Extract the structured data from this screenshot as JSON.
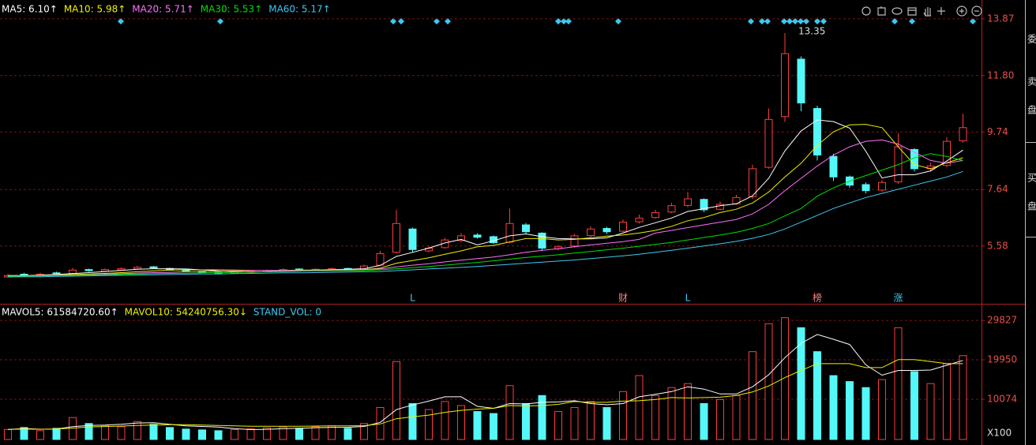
{
  "chart_data": [
    {
      "type": "candlestick",
      "series": [
        {
          "name": "MA5: 6.10↑",
          "color": "#ffffff",
          "values": [
            4.5,
            4.5,
            4.52,
            4.54,
            4.57,
            4.61,
            4.65,
            4.69,
            4.73,
            4.75,
            4.75,
            4.74,
            4.71,
            4.67,
            4.64,
            4.63,
            4.64,
            4.66,
            4.68,
            4.7,
            4.72,
            4.73,
            4.75,
            4.87,
            5.2,
            5.35,
            5.5,
            5.69,
            5.82,
            5.62,
            5.77,
            5.95,
            6.02,
            5.92,
            5.85,
            5.84,
            5.84,
            5.88,
            6.05,
            6.26,
            6.43,
            6.6,
            6.84,
            6.94,
            7.05,
            7.12,
            7.41,
            8.05,
            9.05,
            9.78,
            10.18,
            10.12,
            9.88,
            9.04,
            8.06,
            8.18,
            8.18,
            8.32,
            8.68,
            9.08
          ]
        },
        {
          "name": "MA10: 5.98↑",
          "color": "#f0f000",
          "values": [
            4.5,
            4.5,
            4.51,
            4.52,
            4.54,
            4.56,
            4.58,
            4.61,
            4.64,
            4.67,
            4.7,
            4.71,
            4.71,
            4.71,
            4.7,
            4.69,
            4.68,
            4.68,
            4.68,
            4.69,
            4.7,
            4.71,
            4.72,
            4.77,
            4.95,
            5.05,
            5.15,
            5.28,
            5.4,
            5.55,
            5.6,
            5.73,
            5.85,
            5.85,
            5.8,
            5.82,
            5.88,
            5.94,
            5.98,
            6.05,
            6.15,
            6.3,
            6.5,
            6.62,
            6.8,
            6.92,
            7.15,
            7.55,
            8.1,
            8.6,
            9.25,
            9.75,
            10.0,
            10.02,
            9.9,
            9.2,
            8.55,
            8.4,
            8.62,
            8.8
          ]
        },
        {
          "name": "MA20: 5.71↑",
          "color": "#ff70ff",
          "values": [
            4.48,
            4.49,
            4.5,
            4.51,
            4.52,
            4.53,
            4.55,
            4.57,
            4.59,
            4.61,
            4.62,
            4.64,
            4.65,
            4.66,
            4.67,
            4.68,
            4.69,
            4.69,
            4.7,
            4.7,
            4.71,
            4.71,
            4.72,
            4.74,
            4.82,
            4.88,
            4.93,
            5.0,
            5.06,
            5.12,
            5.18,
            5.26,
            5.35,
            5.42,
            5.48,
            5.55,
            5.62,
            5.68,
            5.74,
            5.82,
            6.05,
            6.15,
            6.25,
            6.35,
            6.45,
            6.55,
            6.75,
            7.1,
            7.6,
            8.05,
            8.5,
            8.9,
            9.2,
            9.4,
            9.45,
            9.3,
            9.0,
            8.7,
            8.6,
            8.7
          ]
        },
        {
          "name": "MA30: 5.53↑",
          "color": "#00e000",
          "values": [
            4.47,
            4.48,
            4.49,
            4.5,
            4.51,
            4.52,
            4.53,
            4.54,
            4.56,
            4.57,
            4.58,
            4.59,
            4.6,
            4.61,
            4.62,
            4.63,
            4.64,
            4.65,
            4.66,
            4.67,
            4.67,
            4.68,
            4.69,
            4.71,
            4.75,
            4.79,
            4.83,
            4.88,
            4.93,
            4.98,
            5.04,
            5.1,
            5.16,
            5.21,
            5.26,
            5.32,
            5.38,
            5.44,
            5.5,
            5.57,
            5.64,
            5.71,
            5.8,
            5.89,
            5.98,
            6.08,
            6.22,
            6.4,
            6.68,
            6.95,
            7.4,
            7.7,
            7.95,
            8.15,
            8.35,
            8.55,
            8.8,
            8.95,
            8.85,
            8.7
          ]
        },
        {
          "name": "MA60: 5.17↑",
          "color": "#40c8f0",
          "values": [
            4.45,
            4.46,
            4.46,
            4.47,
            4.48,
            4.49,
            4.5,
            4.51,
            4.52,
            4.53,
            4.54,
            4.55,
            4.56,
            4.56,
            4.57,
            4.58,
            4.59,
            4.6,
            4.6,
            4.61,
            4.62,
            4.63,
            4.64,
            4.65,
            4.68,
            4.71,
            4.74,
            4.77,
            4.8,
            4.83,
            4.87,
            4.91,
            4.95,
            4.99,
            5.03,
            5.07,
            5.12,
            5.17,
            5.22,
            5.28,
            5.35,
            5.42,
            5.5,
            5.58,
            5.66,
            5.75,
            5.86,
            6.0,
            6.2,
            6.45,
            6.7,
            6.95,
            7.15,
            7.35,
            7.5,
            7.65,
            7.8,
            7.95,
            8.1,
            8.3
          ]
        }
      ],
      "open": [
        4.45,
        4.55,
        4.5,
        4.6,
        4.58,
        4.72,
        4.66,
        4.7,
        4.74,
        4.82,
        4.76,
        4.7,
        4.66,
        4.62,
        4.58,
        4.62,
        4.64,
        4.67,
        4.74,
        4.69,
        4.71,
        4.76,
        4.72,
        4.88,
        5.35,
        6.2,
        5.4,
        5.52,
        5.78,
        5.98,
        5.92,
        5.72,
        6.35,
        6.05,
        5.48,
        5.58,
        5.96,
        6.22,
        6.12,
        6.46,
        6.62,
        6.82,
        7.06,
        7.28,
        6.92,
        7.12,
        7.38,
        8.45,
        10.3,
        12.4,
        10.6,
        8.85,
        8.1,
        7.82,
        7.62,
        7.92,
        9.1,
        8.4,
        8.52,
        9.42
      ],
      "high": [
        4.56,
        4.6,
        4.6,
        4.64,
        4.78,
        4.75,
        4.76,
        4.8,
        4.86,
        4.85,
        4.79,
        4.73,
        4.68,
        4.65,
        4.67,
        4.7,
        4.72,
        4.76,
        4.77,
        4.76,
        4.79,
        4.78,
        4.9,
        5.4,
        6.9,
        6.25,
        5.58,
        5.88,
        6.05,
        6.05,
        5.96,
        6.95,
        6.42,
        6.08,
        5.62,
        6.02,
        6.3,
        6.28,
        6.55,
        6.72,
        6.9,
        7.15,
        7.55,
        7.32,
        7.2,
        7.45,
        8.55,
        10.6,
        13.35,
        12.5,
        10.7,
        8.95,
        8.15,
        7.9,
        7.98,
        9.7,
        9.15,
        8.62,
        9.55,
        10.4
      ],
      "low": [
        4.42,
        4.48,
        4.47,
        4.55,
        4.55,
        4.64,
        4.63,
        4.68,
        4.72,
        4.74,
        4.68,
        4.62,
        4.6,
        4.57,
        4.56,
        4.6,
        4.62,
        4.65,
        4.68,
        4.66,
        4.69,
        4.67,
        4.7,
        4.85,
        5.3,
        5.35,
        5.35,
        5.48,
        5.72,
        5.85,
        5.65,
        5.68,
        6.02,
        5.4,
        5.42,
        5.52,
        5.9,
        6.02,
        6.08,
        6.4,
        6.58,
        6.78,
        7.0,
        6.82,
        6.88,
        7.08,
        7.3,
        8.4,
        10.1,
        10.5,
        8.7,
        7.95,
        7.7,
        7.5,
        7.55,
        7.85,
        8.3,
        8.3,
        8.45,
        9.35
      ],
      "close": [
        4.5,
        4.52,
        4.55,
        4.58,
        4.7,
        4.68,
        4.72,
        4.75,
        4.8,
        4.78,
        4.7,
        4.65,
        4.62,
        4.6,
        4.63,
        4.66,
        4.68,
        4.72,
        4.7,
        4.73,
        4.75,
        4.7,
        4.85,
        5.3,
        6.4,
        5.45,
        5.5,
        5.8,
        5.95,
        5.9,
        5.7,
        6.4,
        6.1,
        5.5,
        5.55,
        5.95,
        6.2,
        6.1,
        6.45,
        6.6,
        6.8,
        7.05,
        7.3,
        6.9,
        7.1,
        7.35,
        8.4,
        10.2,
        12.6,
        10.8,
        8.9,
        8.1,
        7.8,
        7.6,
        7.9,
        9.2,
        8.4,
        8.5,
        9.4,
        9.9
      ],
      "up_color": "#ff3c3c",
      "down_color": "#54f8f8",
      "ylim": [
        3.5,
        14.27
      ],
      "yticks": [
        5.58,
        7.64,
        9.74,
        {
          "value": 11.8,
          "label": "11.80"
        },
        13.87
      ],
      "grid": true,
      "events": [
        "L",
        "财",
        "L",
        "榜",
        "涨"
      ]
    },
    {
      "type": "bar",
      "series": [
        {
          "name": "MAVOL5: 61584720.60↑",
          "color": "#ffffff",
          "values": [
            2500,
            2750,
            2570,
            2625,
            3200,
            3500,
            3600,
            3800,
            4140,
            4200,
            3800,
            3420,
            3260,
            3100,
            2700,
            2480,
            2540,
            2680,
            2800,
            2940,
            3040,
            3060,
            3260,
            4280,
            7500,
            8640,
            9600,
            10700,
            10700,
            8300,
            7800,
            9000,
            8900,
            9300,
            9400,
            9700,
            9000,
            8700,
            9000,
            10700,
            11300,
            12000,
            13200,
            12600,
            11400,
            11400,
            13200,
            16200,
            20500,
            24100,
            26300,
            25100,
            23800,
            18700,
            16100,
            17300,
            17300,
            17400,
            18600,
            19800
          ]
        },
        {
          "name": "MAVOL10: 54240756.30↓",
          "color": "#f0f000",
          "values": [
            2500,
            2600,
            2550,
            2600,
            2850,
            3150,
            3250,
            3350,
            3500,
            3600,
            3700,
            3700,
            3600,
            3500,
            3400,
            3300,
            3300,
            3300,
            3300,
            3350,
            3400,
            3400,
            3450,
            3900,
            5200,
            5700,
            6100,
            6800,
            7300,
            7600,
            7800,
            8500,
            8400,
            8500,
            8800,
            9500,
            9300,
            9300,
            9600,
            9700,
            10000,
            10500,
            10400,
            10500,
            10600,
            11000,
            11900,
            13400,
            15500,
            17300,
            19000,
            19000,
            19000,
            18000,
            18000,
            20000,
            20000,
            19500,
            19000,
            19000
          ]
        }
      ],
      "legend_extra": "STAND_VOL: 0",
      "values": [
        2500,
        3000,
        2200,
        2800,
        5500,
        4000,
        3500,
        3200,
        4500,
        3800,
        3000,
        2600,
        2400,
        2200,
        2500,
        2700,
        2900,
        3100,
        2800,
        3200,
        3400,
        2800,
        4000,
        8000,
        19500,
        9000,
        7500,
        9500,
        8500,
        7000,
        6500,
        13500,
        9000,
        11000,
        7000,
        8000,
        9500,
        8000,
        12000,
        16000,
        11000,
        13000,
        14000,
        9000,
        10000,
        11000,
        22000,
        29000,
        30500,
        28000,
        22000,
        16000,
        14500,
        13000,
        15000,
        28000,
        17000,
        14000,
        19000,
        21000
      ],
      "ylim": [
        0,
        33400
      ],
      "yticks": [
        10074,
        19950,
        29827
      ],
      "unit_label": "X100",
      "grid": true
    }
  ],
  "side_panel": [
    "委",
    "卖",
    "盘",
    "买",
    "盘"
  ]
}
